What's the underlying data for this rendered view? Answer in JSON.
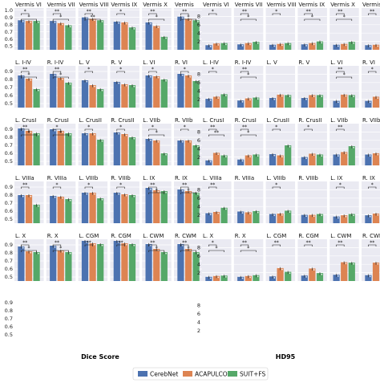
{
  "colors": {
    "panel_bg": "#eaeaf2",
    "grid": "#ffffff",
    "series": [
      "#4c72b0",
      "#dd8452",
      "#55a868"
    ]
  },
  "legend": {
    "items": [
      {
        "label": "CerebNet",
        "color": "#4c72b0"
      },
      {
        "label": "ACAPULCO¹",
        "color": "#dd8452"
      },
      {
        "label": "SUIT+FS",
        "color": "#55a868"
      }
    ]
  },
  "chart_data": [
    {
      "type": "bar",
      "title": "Dice Score",
      "layout": {
        "rows": 6,
        "cols": 6
      },
      "y_ticks": [
        [
          "0.5",
          "0.6",
          "0.7",
          "0.8",
          "0.9",
          "1.0"
        ],
        [
          "0.5",
          "0.6",
          "0.7",
          "0.8",
          "0.9"
        ],
        [
          "0.5",
          "0.6",
          "0.7",
          "0.8",
          "0.9"
        ],
        [
          "0.5",
          "0.6",
          "0.7",
          "0.8",
          "0.9"
        ],
        [
          "0.5",
          "0.6",
          "0.7",
          "0.8",
          "0.9"
        ],
        [
          "0.5",
          "0.6",
          "0.7",
          "0.8",
          "0.9"
        ]
      ],
      "ylims": [
        [
          0.45,
          1.03
        ],
        [
          0.45,
          0.97
        ],
        [
          0.45,
          0.97
        ],
        [
          0.45,
          0.97
        ],
        [
          0.45,
          0.97
        ],
        [
          0.45,
          0.97
        ]
      ],
      "series_names": [
        "CerebNet",
        "ACAPULCO¹",
        "SUIT+FS"
      ],
      "panels": [
        {
          "label": "Vermis VI",
          "values": [
            0.86,
            0.85,
            0.85
          ],
          "sig": [
            "*",
            "*"
          ]
        },
        {
          "label": "Vermis VII",
          "values": [
            0.85,
            0.82,
            0.79
          ],
          "sig": [
            "**",
            "*"
          ]
        },
        {
          "label": "Vermis VIII",
          "values": [
            0.9,
            0.88,
            0.86
          ],
          "sig": [
            "**",
            "**"
          ]
        },
        {
          "label": "Vermis IX",
          "values": [
            0.84,
            0.83,
            0.76
          ],
          "sig": [
            "*"
          ]
        },
        {
          "label": "Vermis X",
          "values": [
            0.83,
            0.78,
            0.63
          ],
          "sig": [
            "**",
            "*"
          ]
        },
        {
          "label": "Vermis",
          "values": [
            0.91,
            0.88,
            0.86
          ],
          "sig": [
            "**",
            "*"
          ]
        },
        {
          "label": "L. I-IV",
          "values": [
            0.85,
            0.81,
            0.68
          ],
          "sig": [
            "**",
            "*"
          ]
        },
        {
          "label": "R. I-IV",
          "values": [
            0.87,
            0.82,
            0.76
          ],
          "sig": [
            "**",
            "*"
          ]
        },
        {
          "label": "L. V",
          "values": [
            0.79,
            0.73,
            0.68
          ],
          "sig": [
            "*"
          ]
        },
        {
          "label": "R. V",
          "values": [
            0.77,
            0.74,
            0.73
          ],
          "sig": [
            "*"
          ]
        },
        {
          "label": "L. VI",
          "values": [
            0.85,
            0.84,
            0.8
          ],
          "sig": [
            "*"
          ]
        },
        {
          "label": "R. VI",
          "values": [
            0.87,
            0.85,
            0.78
          ],
          "sig": [
            "*"
          ]
        },
        {
          "label": "L. CrusI",
          "values": [
            0.91,
            0.88,
            0.85
          ],
          "sig": [
            "**",
            "*"
          ]
        },
        {
          "label": "R. CrusI",
          "values": [
            0.9,
            0.88,
            0.85
          ],
          "sig": [
            "*",
            "*"
          ]
        },
        {
          "label": "L. CrusII",
          "values": [
            0.85,
            0.85,
            0.77
          ],
          "sig": [
            "*"
          ]
        },
        {
          "label": "R. CrusII",
          "values": [
            0.86,
            0.84,
            0.8
          ],
          "sig": [
            "*"
          ]
        },
        {
          "label": "L. VIIb",
          "values": [
            0.78,
            0.76,
            0.6
          ],
          "sig": [
            "*",
            "*"
          ]
        },
        {
          "label": "R. VIIb",
          "values": [
            0.76,
            0.76,
            0.7
          ],
          "sig": [
            "*"
          ]
        },
        {
          "label": "L. VIIIa",
          "values": [
            0.8,
            0.8,
            0.68
          ],
          "sig": [
            "**"
          ]
        },
        {
          "label": "R. VIIIa",
          "values": [
            0.79,
            0.78,
            0.75
          ],
          "sig": [
            "*"
          ]
        },
        {
          "label": "L. VIIIb",
          "values": [
            0.83,
            0.83,
            0.76
          ],
          "sig": [
            "*"
          ]
        },
        {
          "label": "R. VIIIb",
          "values": [
            0.83,
            0.81,
            0.8
          ],
          "sig": [
            "*"
          ]
        },
        {
          "label": "L. IX",
          "values": [
            0.89,
            0.86,
            0.85
          ],
          "sig": [
            "**",
            "*"
          ]
        },
        {
          "label": "R. IX",
          "values": [
            0.87,
            0.85,
            0.83
          ],
          "sig": [
            "**",
            "*"
          ]
        },
        {
          "label": "L. X",
          "values": [
            0.88,
            0.82,
            0.81
          ],
          "sig": [
            "**",
            "*"
          ]
        },
        {
          "label": "R. X",
          "values": [
            0.89,
            0.83,
            0.81
          ],
          "sig": [
            "**",
            "*"
          ]
        },
        {
          "label": "L. CGM",
          "values": [
            0.95,
            0.92,
            0.91
          ],
          "sig": [
            "**"
          ]
        },
        {
          "label": "R. CGM",
          "values": [
            0.95,
            0.92,
            0.91
          ],
          "sig": [
            "**"
          ]
        },
        {
          "label": "L. CWM",
          "values": [
            0.91,
            0.85,
            0.81
          ],
          "sig": [
            "**",
            "*"
          ]
        },
        {
          "label": "R. CWM",
          "values": [
            0.91,
            0.85,
            0.81
          ],
          "sig": [
            "**",
            "*"
          ]
        }
      ]
    },
    {
      "type": "bar",
      "title": "HD95",
      "layout": {
        "rows": 6,
        "cols": 6
      },
      "y_ticks": [
        [
          "2",
          "4",
          "6",
          "8"
        ],
        [
          "2",
          "4",
          "6",
          "8"
        ],
        [
          "2",
          "4",
          "6",
          "8"
        ],
        [
          "2",
          "4",
          "6",
          "8"
        ],
        [
          "2",
          "4",
          "6",
          "8"
        ],
        [
          "2",
          "4",
          "6",
          "8"
        ]
      ],
      "ylims": [
        [
          0,
          10
        ],
        [
          0,
          10
        ],
        [
          0,
          10
        ],
        [
          0,
          10
        ],
        [
          0,
          10
        ],
        [
          0,
          10
        ]
      ],
      "series_names": [
        "CerebNet",
        "ACAPULCO¹",
        "SUIT+FS"
      ],
      "panels": [
        {
          "label": "Vermis VI",
          "values": [
            1.1,
            1.5,
            1.6
          ],
          "sig": [
            "*"
          ]
        },
        {
          "label": "Vermis VII",
          "values": [
            1.3,
            1.6,
            1.9
          ],
          "sig": [
            "**",
            "*"
          ]
        },
        {
          "label": "Vermis VIII",
          "values": [
            1.2,
            1.4,
            1.6
          ],
          "sig": [
            "*"
          ]
        },
        {
          "label": "Vermis IX",
          "values": [
            1.3,
            1.6,
            2.0
          ],
          "sig": [
            "**",
            "*"
          ]
        },
        {
          "label": "Vermis X",
          "values": [
            1.2,
            1.4,
            1.9
          ],
          "sig": [
            "**",
            "*"
          ]
        },
        {
          "label": "Vermis",
          "values": [
            1.1,
            1.2,
            1.3
          ],
          "sig": [
            "**"
          ]
        },
        {
          "label": "L. I-IV",
          "values": [
            2.1,
            2.6,
            3.2
          ],
          "sig": [
            "*"
          ]
        },
        {
          "label": "R. I-IV",
          "values": [
            1.7,
            2.2,
            2.4
          ],
          "sig": [
            "**",
            "*"
          ]
        },
        {
          "label": "L. V",
          "values": [
            2.3,
            3.1,
            3.0
          ],
          "sig": []
        },
        {
          "label": "R. V",
          "values": [
            2.3,
            3.0,
            3.0
          ],
          "sig": []
        },
        {
          "label": "L. VI",
          "values": [
            1.6,
            3.1,
            3.0
          ],
          "sig": [
            "**",
            "*"
          ]
        },
        {
          "label": "R. VI",
          "values": [
            1.6,
            2.6,
            3.1
          ],
          "sig": [
            "*"
          ]
        },
        {
          "label": "L. CrusI",
          "values": [
            1.2,
            3.0,
            2.4
          ],
          "sig": [
            "**",
            "**"
          ]
        },
        {
          "label": "R. CrusI",
          "values": [
            1.4,
            2.4,
            2.6
          ],
          "sig": [
            "**",
            "*"
          ]
        },
        {
          "label": "L. CrusII",
          "values": [
            2.7,
            2.4,
            4.8
          ],
          "sig": [
            "*"
          ]
        },
        {
          "label": "R. CrusII",
          "values": [
            2.0,
            2.8,
            2.6
          ],
          "sig": [
            "*"
          ]
        },
        {
          "label": "L. VIIb",
          "values": [
            2.6,
            3.2,
            4.6
          ],
          "sig": [
            "**"
          ]
        },
        {
          "label": "R. VIIb",
          "values": [
            2.6,
            2.9,
            2.9
          ],
          "sig": []
        },
        {
          "label": "L. VIIIa",
          "values": [
            2.4,
            2.7,
            3.7
          ],
          "sig": [
            "**"
          ]
        },
        {
          "label": "R. VIIIa",
          "values": [
            2.8,
            2.6,
            2.9
          ],
          "sig": []
        },
        {
          "label": "L. VIIIb",
          "values": [
            2.2,
            2.3,
            3.0
          ],
          "sig": [
            "*"
          ]
        },
        {
          "label": "R. VIIIb",
          "values": [
            2.0,
            2.0,
            2.2
          ],
          "sig": []
        },
        {
          "label": "L. IX",
          "values": [
            1.6,
            1.9,
            2.2
          ],
          "sig": [
            "*"
          ]
        },
        {
          "label": "R. IX",
          "values": [
            1.9,
            2.3,
            2.6
          ],
          "sig": [
            "*"
          ]
        },
        {
          "label": "L. X",
          "values": [
            1.0,
            1.2,
            1.3
          ],
          "sig": [
            "*",
            "*"
          ]
        },
        {
          "label": "R. X",
          "values": [
            1.0,
            1.2,
            1.4
          ],
          "sig": [
            "**",
            "*"
          ]
        },
        {
          "label": "L. CGM",
          "values": [
            1.1,
            3.1,
            2.2
          ],
          "sig": [
            "**"
          ]
        },
        {
          "label": "R. CGM",
          "values": [
            1.3,
            3.0,
            1.9
          ],
          "sig": [
            "**"
          ]
        },
        {
          "label": "L. CWM",
          "values": [
            1.5,
            4.5,
            4.4
          ],
          "sig": [
            "**"
          ]
        },
        {
          "label": "R. CWM",
          "values": [
            1.4,
            4.4,
            3.6
          ],
          "sig": [
            "**"
          ]
        }
      ]
    }
  ]
}
